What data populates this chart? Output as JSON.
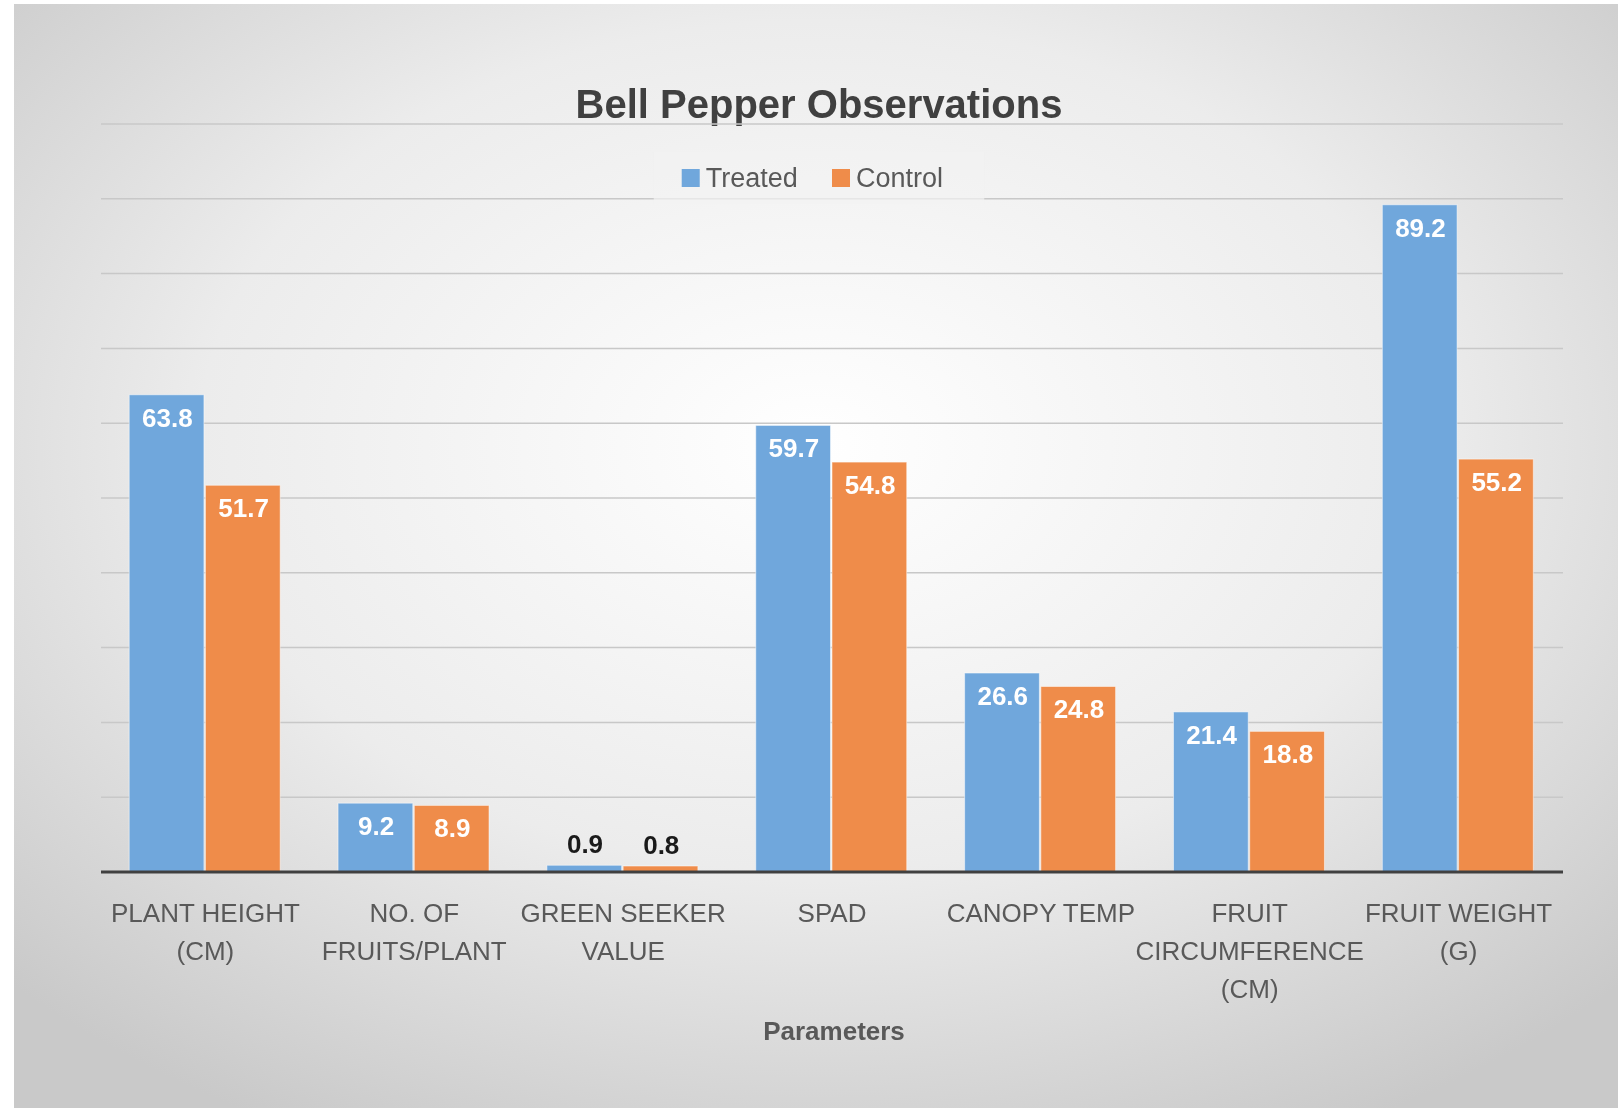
{
  "chart_data": {
    "type": "bar",
    "title": "Bell Pepper Observations",
    "xlabel": "Parameters",
    "categories": [
      "PLANT HEIGHT (CM)",
      "NO. OF FRUITS/PLANT",
      "GREEN SEEKER VALUE",
      "SPAD",
      "CANOPY TEMP",
      "FRUIT CIRCUMFERENCE (CM)",
      "FRUIT WEIGHT (G)"
    ],
    "series": [
      {
        "name": "Treated",
        "color": "#70a7dc",
        "values": [
          63.8,
          9.2,
          0.9,
          59.7,
          26.6,
          21.4,
          89.2
        ]
      },
      {
        "name": "Control",
        "color": "#ef8c4a",
        "values": [
          51.7,
          8.9,
          0.8,
          54.8,
          24.8,
          18.8,
          55.2
        ]
      }
    ],
    "ylim": [
      0,
      100
    ],
    "yticks": [
      {
        "value": 0,
        "label": null
      },
      {
        "value": 10,
        "label": null
      },
      {
        "value": 20,
        "label": null
      },
      {
        "value": 30,
        "label": null
      },
      {
        "value": 40,
        "label": null
      },
      {
        "value": 50,
        "label": null
      },
      {
        "value": 60,
        "label": null
      },
      {
        "value": 70,
        "label": null
      },
      {
        "value": 80,
        "label": null
      },
      {
        "value": 90,
        "label": null
      },
      {
        "value": 100,
        "label": null
      }
    ],
    "tick_labels": "x",
    "grid": "y",
    "legend": "top",
    "data_labels": true
  }
}
